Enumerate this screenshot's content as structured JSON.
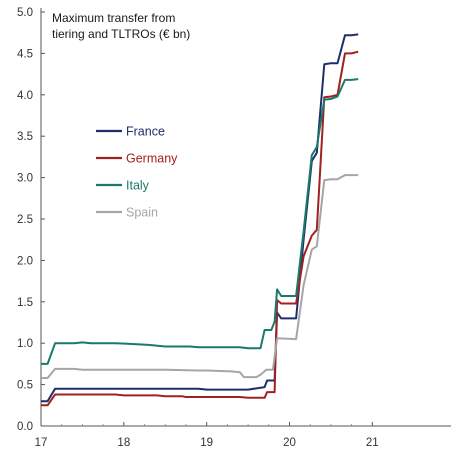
{
  "chart_data": {
    "type": "line",
    "title_lines": [
      "Maximum transfer from",
      "tiering and TLTROs (€ bn)"
    ],
    "xlabel": "",
    "ylabel": "",
    "xlim": [
      17,
      21.95
    ],
    "ylim": [
      0,
      5.0
    ],
    "xticks": [
      17,
      18,
      19,
      20,
      21
    ],
    "yticks": [
      0,
      0.5,
      1.0,
      1.5,
      2.0,
      2.5,
      3.0,
      3.5,
      4.0,
      4.5,
      5.0
    ],
    "ytick_labels": [
      "0.0",
      "0.5",
      "1.0",
      "1.5",
      "2.0",
      "2.5",
      "3.0",
      "3.5",
      "4.0",
      "4.5",
      "5.0"
    ],
    "xtick_labels": [
      "17",
      "18",
      "19",
      "20",
      "21"
    ],
    "grid": false,
    "legend_position": "left-middle",
    "series": [
      {
        "name": "France",
        "color": "#1f2d6b",
        "points": [
          [
            17.0,
            0.3
          ],
          [
            17.08,
            0.3
          ],
          [
            17.17,
            0.45
          ],
          [
            17.5,
            0.45
          ],
          [
            18.0,
            0.45
          ],
          [
            18.5,
            0.45
          ],
          [
            18.9,
            0.45
          ],
          [
            19.0,
            0.44
          ],
          [
            19.4,
            0.44
          ],
          [
            19.5,
            0.44
          ],
          [
            19.7,
            0.47
          ],
          [
            19.73,
            0.55
          ],
          [
            19.82,
            0.55
          ],
          [
            19.85,
            1.37
          ],
          [
            19.9,
            1.3
          ],
          [
            20.08,
            1.3
          ],
          [
            20.17,
            2.25
          ],
          [
            20.27,
            3.2
          ],
          [
            20.33,
            3.3
          ],
          [
            20.42,
            4.37
          ],
          [
            20.5,
            4.38
          ],
          [
            20.58,
            4.38
          ],
          [
            20.67,
            4.72
          ],
          [
            20.75,
            4.72
          ],
          [
            20.83,
            4.73
          ]
        ]
      },
      {
        "name": "Germany",
        "color": "#a32020",
        "points": [
          [
            17.0,
            0.25
          ],
          [
            17.08,
            0.25
          ],
          [
            17.17,
            0.38
          ],
          [
            17.5,
            0.38
          ],
          [
            17.9,
            0.38
          ],
          [
            18.0,
            0.37
          ],
          [
            18.4,
            0.37
          ],
          [
            18.5,
            0.36
          ],
          [
            18.7,
            0.36
          ],
          [
            18.75,
            0.35
          ],
          [
            19.4,
            0.35
          ],
          [
            19.5,
            0.34
          ],
          [
            19.7,
            0.34
          ],
          [
            19.73,
            0.41
          ],
          [
            19.82,
            0.41
          ],
          [
            19.85,
            1.52
          ],
          [
            19.9,
            1.48
          ],
          [
            20.08,
            1.48
          ],
          [
            20.17,
            2.05
          ],
          [
            20.27,
            2.3
          ],
          [
            20.33,
            2.37
          ],
          [
            20.42,
            3.97
          ],
          [
            20.5,
            3.98
          ],
          [
            20.58,
            4.0
          ],
          [
            20.67,
            4.5
          ],
          [
            20.75,
            4.5
          ],
          [
            20.83,
            4.52
          ]
        ]
      },
      {
        "name": "Italy",
        "color": "#1a7a6a",
        "points": [
          [
            17.0,
            0.75
          ],
          [
            17.08,
            0.75
          ],
          [
            17.17,
            1.0
          ],
          [
            17.4,
            1.0
          ],
          [
            17.5,
            1.01
          ],
          [
            17.6,
            1.0
          ],
          [
            17.9,
            1.0
          ],
          [
            18.1,
            0.99
          ],
          [
            18.3,
            0.98
          ],
          [
            18.5,
            0.96
          ],
          [
            18.8,
            0.96
          ],
          [
            18.9,
            0.95
          ],
          [
            19.2,
            0.95
          ],
          [
            19.4,
            0.95
          ],
          [
            19.5,
            0.94
          ],
          [
            19.65,
            0.94
          ],
          [
            19.7,
            1.16
          ],
          [
            19.78,
            1.16
          ],
          [
            19.82,
            1.26
          ],
          [
            19.85,
            1.65
          ],
          [
            19.9,
            1.57
          ],
          [
            20.08,
            1.57
          ],
          [
            20.17,
            2.35
          ],
          [
            20.27,
            3.27
          ],
          [
            20.33,
            3.37
          ],
          [
            20.42,
            3.94
          ],
          [
            20.5,
            3.95
          ],
          [
            20.58,
            3.98
          ],
          [
            20.67,
            4.18
          ],
          [
            20.75,
            4.18
          ],
          [
            20.83,
            4.19
          ]
        ]
      },
      {
        "name": "Spain",
        "color": "#a6a6a6",
        "points": [
          [
            17.0,
            0.58
          ],
          [
            17.08,
            0.58
          ],
          [
            17.17,
            0.69
          ],
          [
            17.4,
            0.69
          ],
          [
            17.5,
            0.68
          ],
          [
            18.0,
            0.68
          ],
          [
            18.5,
            0.68
          ],
          [
            18.9,
            0.67
          ],
          [
            19.0,
            0.67
          ],
          [
            19.3,
            0.66
          ],
          [
            19.4,
            0.65
          ],
          [
            19.45,
            0.59
          ],
          [
            19.6,
            0.59
          ],
          [
            19.65,
            0.62
          ],
          [
            19.72,
            0.68
          ],
          [
            19.8,
            0.68
          ],
          [
            19.85,
            1.06
          ],
          [
            20.08,
            1.05
          ],
          [
            20.17,
            1.7
          ],
          [
            20.27,
            2.13
          ],
          [
            20.33,
            2.17
          ],
          [
            20.42,
            2.97
          ],
          [
            20.5,
            2.98
          ],
          [
            20.58,
            2.98
          ],
          [
            20.67,
            3.03
          ],
          [
            20.75,
            3.03
          ],
          [
            20.83,
            3.03
          ]
        ]
      }
    ]
  }
}
